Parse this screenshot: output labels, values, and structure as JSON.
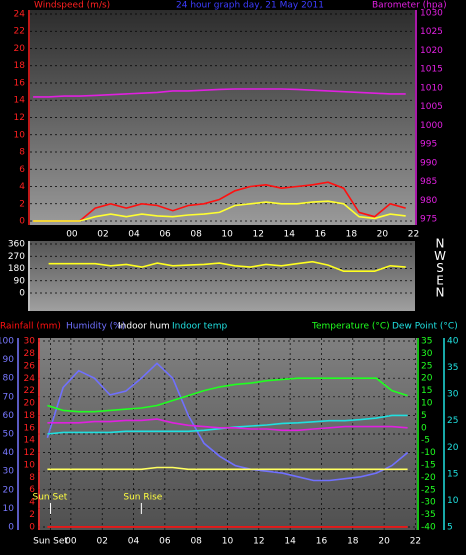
{
  "chart_data": [
    {
      "type": "line",
      "title": "24 hour graph day, 21 May 2011",
      "ylabel": "Windspeed (m/s)",
      "y2label": "Barometer (hpa)",
      "title_color": "#3c3cff",
      "ycolor": "#ff2020",
      "y2color": "#e020e0",
      "grid": true,
      "x": [
        -2.5,
        -1.5,
        -0.5,
        0.5,
        1.5,
        2.5,
        3.5,
        4.5,
        5.5,
        6.5,
        7.5,
        8.5,
        9.5,
        10.5,
        11.5,
        12.5,
        13.5,
        14.5,
        15.5,
        16.5,
        17.5,
        18.5,
        19.5,
        20.5,
        21.5
      ],
      "xlim": [
        -2.7,
        22.1
      ],
      "xticks": [
        {
          "value": 0,
          "label": "00"
        },
        {
          "value": 2,
          "label": "02"
        },
        {
          "value": 4,
          "label": "04"
        },
        {
          "value": 6,
          "label": "06"
        },
        {
          "value": 8,
          "label": "08"
        },
        {
          "value": 10,
          "label": "10"
        },
        {
          "value": 12,
          "label": "12"
        },
        {
          "value": 14,
          "label": "14"
        },
        {
          "value": 16,
          "label": "16"
        },
        {
          "value": 18,
          "label": "18"
        },
        {
          "value": 20,
          "label": "20"
        },
        {
          "value": 22,
          "label": "22"
        }
      ],
      "ylim": [
        -0.46,
        24.46
      ],
      "yticks": [
        0,
        2,
        4,
        6,
        8,
        10,
        12,
        14,
        16,
        18,
        20,
        22,
        24
      ],
      "y2lim": [
        973.4,
        1030.8
      ],
      "y2ticks": [
        975,
        980,
        985,
        990,
        995,
        1000,
        1005,
        1010,
        1015,
        1020,
        1025,
        1030
      ],
      "series": [
        {
          "color": "#ff1010",
          "values": [
            0,
            0,
            0,
            0,
            1.5,
            2,
            1.5,
            2,
            1.8,
            1.2,
            1.8,
            2,
            2.5,
            3.5,
            4,
            4.2,
            3.8,
            4,
            4.2,
            4.5,
            3.8,
            1,
            0.5,
            2,
            1.5
          ]
        },
        {
          "color": "#ffff30",
          "values": [
            0,
            0,
            0,
            0,
            0.5,
            0.8,
            0.5,
            0.8,
            0.6,
            0.5,
            0.7,
            0.8,
            1,
            1.8,
            2,
            2.2,
            2,
            2,
            2.2,
            2.3,
            2,
            0.5,
            0.3,
            0.8,
            0.6
          ]
        },
        {
          "color": "#e020e0",
          "axis": "y2",
          "values": [
            1007.6,
            1007.6,
            1007.8,
            1007.8,
            1008,
            1008.2,
            1008.4,
            1008.6,
            1008.8,
            1009.2,
            1009.2,
            1009.4,
            1009.6,
            1009.7,
            1009.7,
            1009.7,
            1009.7,
            1009.6,
            1009.4,
            1009.2,
            1009,
            1008.8,
            1008.6,
            1008.4,
            1008.4
          ]
        }
      ]
    },
    {
      "type": "line",
      "ycolor": "#ffffff",
      "y2color": "#ffffff",
      "grid": true,
      "x": [
        -2.5,
        -1.5,
        -0.5,
        0.5,
        1.5,
        2.5,
        3.5,
        4.5,
        5.5,
        6.5,
        7.5,
        8.5,
        9.5,
        10.5,
        11.5,
        12.5,
        13.5,
        14.5,
        15.5,
        16.5,
        17.5,
        18.5,
        19.5,
        20.5,
        21.5
      ],
      "xlim": [
        -2.7,
        22.1
      ],
      "ylim": [
        -132,
        382
      ],
      "yticks": [
        0,
        90,
        180,
        270,
        360
      ],
      "y2lim": [
        -132,
        382
      ],
      "y2ticks": [
        {
          "value": 360,
          "label": "N"
        },
        {
          "value": 270,
          "label": "W"
        },
        {
          "value": 180,
          "label": "S"
        },
        {
          "value": 90,
          "label": "E"
        },
        {
          "value": 0,
          "label": "N"
        }
      ],
      "series": [
        {
          "color": "#ffff20",
          "values": [
            null,
            215,
            215,
            215,
            215,
            200,
            210,
            190,
            220,
            200,
            205,
            210,
            220,
            200,
            190,
            210,
            200,
            215,
            230,
            205,
            160,
            160,
            160,
            200,
            190
          ]
        }
      ]
    },
    {
      "type": "line",
      "grid": true,
      "x": [
        -1.5,
        -0.5,
        0.5,
        1.5,
        2.5,
        3.5,
        4.5,
        5.5,
        6.5,
        7.5,
        8.5,
        9.5,
        10.5,
        11.5,
        12.5,
        13.5,
        14.5,
        15.5,
        16.5,
        17.5,
        18.5,
        19.5,
        20.5,
        21.5
      ],
      "xlim": [
        -2.1,
        22.1
      ],
      "xticks": [
        {
          "value": -1.3,
          "label": "Sun Set"
        },
        {
          "value": 0,
          "label": "00"
        },
        {
          "value": 2,
          "label": "02"
        },
        {
          "value": 4,
          "label": "04"
        },
        {
          "value": 6,
          "label": "06"
        },
        {
          "value": 8,
          "label": "08"
        },
        {
          "value": 10,
          "label": "10"
        },
        {
          "value": 12,
          "label": "12"
        },
        {
          "value": 14,
          "label": "14"
        },
        {
          "value": 16,
          "label": "16"
        },
        {
          "value": 18,
          "label": "18"
        },
        {
          "value": 20,
          "label": "20"
        },
        {
          "value": 22,
          "label": "22"
        }
      ],
      "axes": [
        {
          "color": "#7878ff",
          "lim": [
            -1.6,
            101.6
          ],
          "ticks": [
            0,
            10,
            20,
            30,
            40,
            50,
            60,
            70,
            80,
            90,
            100
          ]
        },
        {
          "color": "#ff2020",
          "lim": [
            -0.5,
            30.5
          ],
          "ticks": [
            0,
            2,
            4,
            6,
            8,
            10,
            12,
            14,
            16,
            18,
            20,
            22,
            24,
            26,
            28,
            30
          ]
        },
        {
          "color": "#20ff20",
          "lim": [
            -41.2,
            36.2
          ],
          "ticks": [
            -40,
            -35,
            -30,
            -25,
            -20,
            -15,
            -10,
            -5,
            0,
            5,
            10,
            15,
            20,
            25,
            30,
            35
          ]
        },
        {
          "color": "#20e0e0",
          "lim": [
            4.44,
            40.56
          ],
          "ticks": [
            5,
            10,
            15,
            20,
            25,
            30,
            35,
            40
          ]
        }
      ],
      "series": [
        {
          "name": "Rainfall (mm)",
          "color": "#ff1010",
          "axis": 1,
          "values": [
            0,
            0,
            0,
            0,
            0,
            0,
            0,
            0,
            0,
            0,
            0,
            0,
            0,
            0,
            0,
            0,
            0,
            0,
            0,
            0,
            0,
            0,
            0,
            0
          ]
        },
        {
          "name": "Humidity (%)",
          "color": "#7070ff",
          "axis": 0,
          "values": [
            48,
            75,
            84,
            80,
            71,
            73,
            80,
            88,
            80,
            60,
            45,
            38,
            33,
            31,
            30,
            29,
            27,
            25,
            25,
            26,
            27,
            29,
            33,
            40
          ]
        },
        {
          "name": "Indoor hum",
          "color": "#ffff60",
          "legend_color": "#ffffff",
          "axis": 0,
          "values": [
            31,
            31,
            31,
            31,
            31,
            31,
            31,
            32,
            32,
            31,
            31,
            31,
            31,
            31,
            31,
            31,
            31,
            31,
            31,
            31,
            31,
            31,
            31,
            31
          ]
        },
        {
          "name": "Indoor temp",
          "color": "#20e0e0",
          "axis": 3,
          "values": [
            22.5,
            22.8,
            22.8,
            22.8,
            22.8,
            23,
            23,
            23,
            23,
            23,
            23.2,
            23.5,
            23.8,
            24,
            24.2,
            24.5,
            24.6,
            24.8,
            25,
            25,
            25.2,
            25.5,
            26,
            26
          ]
        },
        {
          "name": "Temperature (°C)",
          "color": "#20ff20",
          "axis": 2,
          "values": [
            9,
            7,
            6.5,
            6.5,
            7,
            7.5,
            8,
            9,
            11,
            13,
            15,
            16.5,
            17.5,
            18,
            19,
            19.5,
            20,
            20,
            20,
            20,
            20,
            20,
            15,
            13
          ]
        },
        {
          "name": "Dew Point (°C)",
          "color": "#e020e0",
          "legend_color": "#20e0e0",
          "axis": 2,
          "values": [
            2,
            2,
            2,
            2.5,
            2.5,
            3,
            3,
            3.5,
            2,
            1,
            0.5,
            0,
            0,
            -0.5,
            -0.5,
            -1,
            -1,
            -0.5,
            0,
            0.5,
            0.5,
            0.5,
            0.5,
            0
          ]
        }
      ],
      "annotations": [
        {
          "text": "Sun Set",
          "x": -1.3
        },
        {
          "text": "Sun Rise",
          "x": 4.5
        }
      ]
    }
  ]
}
